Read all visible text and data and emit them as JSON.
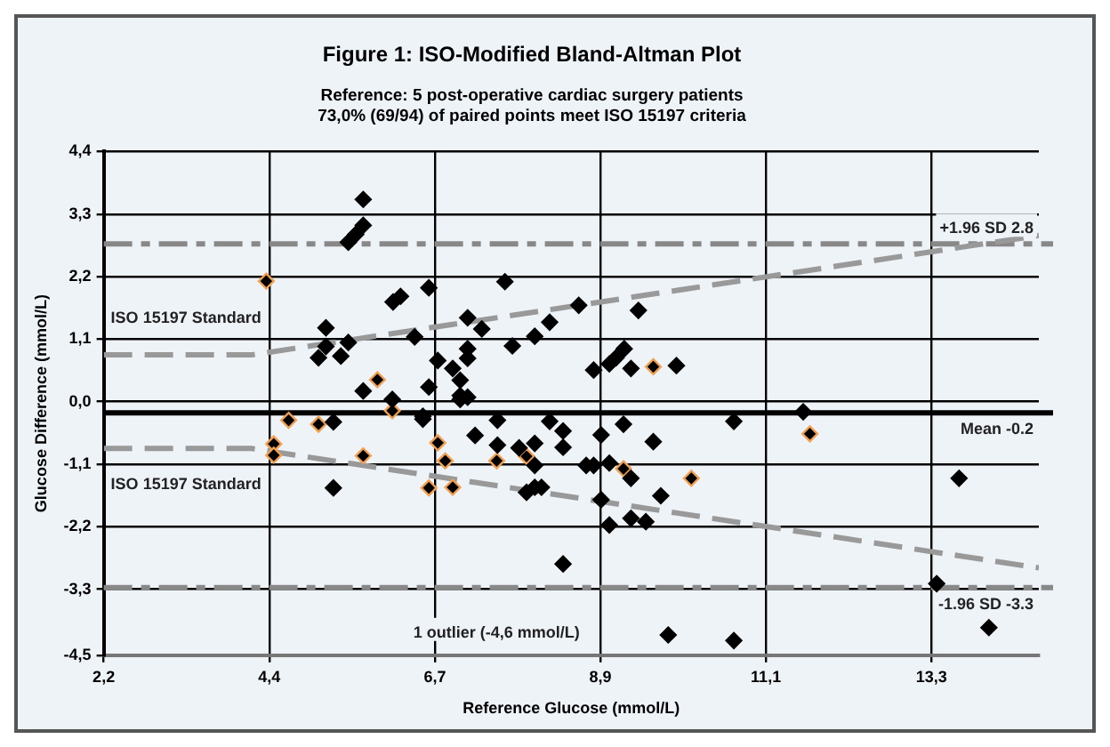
{
  "chart_data": {
    "type": "scatter",
    "title": "Figure 1: ISO-Modified Bland-Altman Plot",
    "subtitle": "Reference: 5 post-operative cardiac surgery patients\n73,0% (69/94) of paired points meet ISO 15197 criteria",
    "xlabel": "Reference Glucose (mmol/L)",
    "ylabel": "Glucose Difference (mmol/L)",
    "xlim": [
      2.22,
      14.76
    ],
    "ylim": [
      -4.5,
      4.44
    ],
    "xticks": [
      {
        "value": 2.22,
        "label": "2,2"
      },
      {
        "value": 4.44,
        "label": "4,4"
      },
      {
        "value": 6.66,
        "label": "6,7"
      },
      {
        "value": 8.88,
        "label": "8,9"
      },
      {
        "value": 11.1,
        "label": "11,1"
      },
      {
        "value": 13.32,
        "label": "13,3"
      }
    ],
    "yticks": [
      {
        "value": -4.5,
        "label": "-4,5"
      },
      {
        "value": -3.33,
        "label": "-3,3"
      },
      {
        "value": -2.22,
        "label": "-2,2"
      },
      {
        "value": -1.11,
        "label": "-1,1"
      },
      {
        "value": 0,
        "label": "0,0"
      },
      {
        "value": 1.11,
        "label": "1,1"
      },
      {
        "value": 2.22,
        "label": "2,2"
      },
      {
        "value": 3.33,
        "label": "3,3"
      },
      {
        "value": 4.44,
        "label": "4,4"
      }
    ],
    "grid": true,
    "legend": false,
    "marker": "diamond",
    "series": [
      {
        "color": "#000000",
        "x": [
          5.7,
          5.7,
          5.6,
          5.5,
          6.1,
          6.2,
          6.58,
          5.2,
          5.2,
          5.1,
          5.4,
          5.5,
          6.39,
          5.7,
          6.09,
          6.58,
          6.5,
          6.5,
          5.3,
          5.3,
          7.6,
          8.59,
          9.39,
          7.1,
          8.2,
          7.29,
          8.0,
          7.7,
          7.1,
          6.7,
          7.1,
          6.9,
          9.2,
          9.09,
          9.0,
          8.79,
          9.29,
          9.9,
          7.0,
          7.0,
          7.1,
          7.0,
          7.5,
          8.2,
          9.19,
          10.67,
          7.2,
          8.38,
          8.89,
          7.5,
          8.0,
          8.38,
          9.59,
          7.79,
          8.0,
          8.69,
          8.79,
          9.0,
          9.29,
          7.89,
          8.0,
          8.09,
          9.69,
          8.89,
          9.0,
          9.29,
          9.49,
          8.38,
          9.79,
          10.67,
          11.6,
          13.69,
          13.39,
          14.09
        ],
        "values": [
          3.59,
          3.13,
          2.97,
          2.83,
          1.77,
          1.87,
          2.02,
          1.31,
          0.98,
          0.78,
          0.81,
          1.05,
          1.15,
          0.19,
          0.04,
          0.26,
          -0.26,
          -0.31,
          -0.36,
          -1.53,
          2.13,
          1.71,
          1.62,
          1.49,
          1.41,
          1.29,
          1.16,
          0.99,
          0.94,
          0.73,
          0.77,
          0.59,
          0.94,
          0.78,
          0.67,
          0.56,
          0.59,
          0.64,
          0.38,
          0.11,
          0.08,
          0.04,
          -0.33,
          -0.35,
          -0.4,
          -0.35,
          -0.6,
          -0.52,
          -0.59,
          -0.77,
          -0.74,
          -0.81,
          -0.71,
          -0.82,
          -1.13,
          -1.13,
          -1.13,
          -1.09,
          -1.36,
          -1.61,
          -1.52,
          -1.52,
          -1.67,
          -1.74,
          -2.19,
          -2.07,
          -2.13,
          -2.88,
          -4.14,
          -4.24,
          -0.18,
          -1.36,
          -3.23,
          -4.01
        ]
      },
      {
        "color": "#f0a050",
        "x": [
          4.4,
          5.89,
          6.09,
          4.7,
          5.1,
          4.5,
          4.5,
          5.7,
          6.58,
          9.59,
          6.7,
          7.89,
          6.8,
          7.49,
          9.19,
          10.1,
          6.9,
          11.69
        ],
        "values": [
          2.14,
          0.39,
          -0.16,
          -0.33,
          -0.4,
          -0.75,
          -0.95,
          -0.96,
          -1.53,
          0.62,
          -0.73,
          -0.97,
          -1.05,
          -1.05,
          -1.19,
          -1.36,
          -1.52,
          -0.57
        ]
      },
      {
        "type": "line",
        "name": "ISO 15197 Standard",
        "color": "#999999",
        "line_style": "dashed",
        "marker": "none",
        "x": [
          2.22,
          4.2,
          14.76
        ],
        "values": [
          0.83,
          0.83,
          2.95
        ]
      },
      {
        "type": "line",
        "name": "ISO 15197 Standard",
        "color": "#999999",
        "line_style": "dashed",
        "marker": "none",
        "x": [
          2.22,
          4.2,
          14.76
        ],
        "values": [
          -0.83,
          -0.83,
          -2.95
        ]
      }
    ],
    "ref_lines": [
      {
        "axis": "y",
        "value": 2.8,
        "label": "+1.96 SD 2.8",
        "color": "#888888",
        "line_style": "dashed"
      },
      {
        "axis": "y",
        "value": -0.2,
        "label": "Mean -0.2",
        "color": "#000000",
        "line_style": "solid"
      },
      {
        "axis": "y",
        "value": -3.3,
        "label": "-1.96 SD -3.3",
        "color": "#888888",
        "line_style": "dashed"
      }
    ],
    "annotations": [
      "1 outlier (-4,6 mmol/L)"
    ]
  }
}
